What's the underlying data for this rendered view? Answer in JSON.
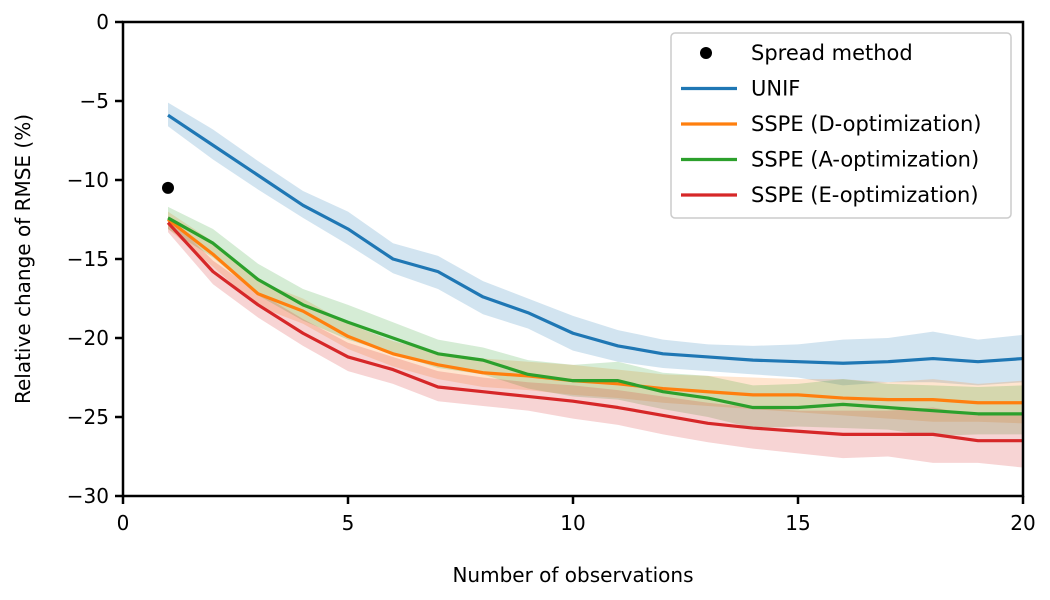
{
  "chart_data": {
    "type": "line",
    "title": "",
    "xlabel": "Number of observations",
    "ylabel": "Relative change of RMSE (%)",
    "xlim": [
      0,
      20
    ],
    "ylim": [
      -30,
      0
    ],
    "xticks": [
      0,
      5,
      10,
      15,
      20
    ],
    "xtick_labels": [
      "0",
      "5",
      "10",
      "15",
      "20"
    ],
    "yticks": [
      0,
      -5,
      -10,
      -15,
      -20,
      -25,
      -30
    ],
    "ytick_labels": [
      "0",
      "−5",
      "−10",
      "−15",
      "−20",
      "−25",
      "−30"
    ],
    "grid": false,
    "legend_position": "top-right",
    "x": [
      1,
      2,
      3,
      4,
      5,
      6,
      7,
      8,
      9,
      10,
      11,
      12,
      13,
      14,
      15,
      16,
      17,
      18,
      19,
      20
    ],
    "points": [
      {
        "name": "Spread method",
        "color": "#000000",
        "x": 1,
        "y": -10.5
      }
    ],
    "series": [
      {
        "name": "UNIF",
        "color": "#1f77b4",
        "values": [
          -5.9,
          -7.8,
          -9.7,
          -11.6,
          -13.1,
          -15.0,
          -15.8,
          -17.4,
          -18.4,
          -19.7,
          -20.5,
          -21.0,
          -21.2,
          -21.4,
          -21.5,
          -21.6,
          -21.5,
          -21.3,
          -21.5,
          -21.3
        ],
        "band_upper": [
          -5.1,
          -6.8,
          -8.8,
          -10.7,
          -12.0,
          -14.0,
          -14.8,
          -16.4,
          -17.5,
          -18.6,
          -19.5,
          -20.1,
          -20.4,
          -20.5,
          -20.4,
          -20.1,
          -20.0,
          -19.6,
          -20.1,
          -19.8
        ],
        "band_lower": [
          -6.6,
          -8.7,
          -10.6,
          -12.4,
          -14.1,
          -15.9,
          -16.9,
          -18.5,
          -19.4,
          -20.8,
          -21.5,
          -21.9,
          -22.1,
          -22.3,
          -22.5,
          -23.0,
          -22.8,
          -22.8,
          -23.0,
          -22.8
        ]
      },
      {
        "name": "SSPE (D-optimization)",
        "color": "#ff7f0e",
        "values": [
          -12.5,
          -14.7,
          -17.2,
          -18.3,
          -19.9,
          -21.0,
          -21.7,
          -22.2,
          -22.4,
          -22.7,
          -22.9,
          -23.2,
          -23.4,
          -23.6,
          -23.6,
          -23.8,
          -23.9,
          -23.9,
          -24.1,
          -24.1
        ],
        "band_upper": [
          -12.0,
          -13.9,
          -16.4,
          -17.5,
          -19.1,
          -20.2,
          -20.9,
          -21.3,
          -21.5,
          -21.7,
          -22.0,
          -22.3,
          -22.4,
          -22.5,
          -22.6,
          -22.6,
          -22.8,
          -22.6,
          -22.9,
          -22.7
        ],
        "band_lower": [
          -13.1,
          -15.5,
          -18.0,
          -19.1,
          -20.7,
          -21.8,
          -22.6,
          -23.1,
          -23.3,
          -23.6,
          -23.8,
          -24.1,
          -24.3,
          -24.5,
          -24.7,
          -24.9,
          -25.1,
          -25.3,
          -25.3,
          -25.4
        ]
      },
      {
        "name": "SSPE (A-optimization)",
        "color": "#2ca02c",
        "values": [
          -12.4,
          -14.0,
          -16.3,
          -17.9,
          -19.0,
          -20.0,
          -21.0,
          -21.4,
          -22.3,
          -22.7,
          -22.7,
          -23.4,
          -23.8,
          -24.4,
          -24.4,
          -24.2,
          -24.4,
          -24.6,
          -24.8,
          -24.8
        ],
        "band_upper": [
          -11.7,
          -13.1,
          -15.3,
          -16.9,
          -17.9,
          -19.0,
          -20.1,
          -20.6,
          -21.4,
          -21.7,
          -21.5,
          -22.2,
          -22.4,
          -23.0,
          -22.9,
          -22.6,
          -22.9,
          -23.0,
          -23.1,
          -23.0
        ],
        "band_lower": [
          -13.1,
          -14.9,
          -17.3,
          -18.9,
          -20.1,
          -21.0,
          -21.9,
          -22.3,
          -23.2,
          -23.7,
          -23.9,
          -24.5,
          -25.0,
          -25.7,
          -25.6,
          -25.7,
          -25.8,
          -26.2,
          -26.1,
          -26.1
        ]
      },
      {
        "name": "SSPE (E-optimization)",
        "color": "#d62728",
        "values": [
          -12.7,
          -15.8,
          -17.9,
          -19.7,
          -21.2,
          -22.0,
          -23.1,
          -23.4,
          -23.7,
          -24.0,
          -24.4,
          -24.9,
          -25.4,
          -25.7,
          -25.9,
          -26.1,
          -26.1,
          -26.1,
          -26.5,
          -26.5
        ],
        "band_upper": [
          -12.3,
          -15.1,
          -17.1,
          -18.8,
          -20.3,
          -21.2,
          -22.1,
          -22.5,
          -22.8,
          -23.0,
          -23.3,
          -23.7,
          -24.1,
          -24.4,
          -24.6,
          -24.6,
          -24.6,
          -24.4,
          -24.9,
          -24.7
        ],
        "band_lower": [
          -13.3,
          -16.6,
          -18.7,
          -20.5,
          -22.1,
          -22.9,
          -24.0,
          -24.3,
          -24.6,
          -25.1,
          -25.5,
          -26.1,
          -26.6,
          -27.0,
          -27.3,
          -27.6,
          -27.5,
          -27.9,
          -27.9,
          -28.2
        ]
      }
    ]
  }
}
